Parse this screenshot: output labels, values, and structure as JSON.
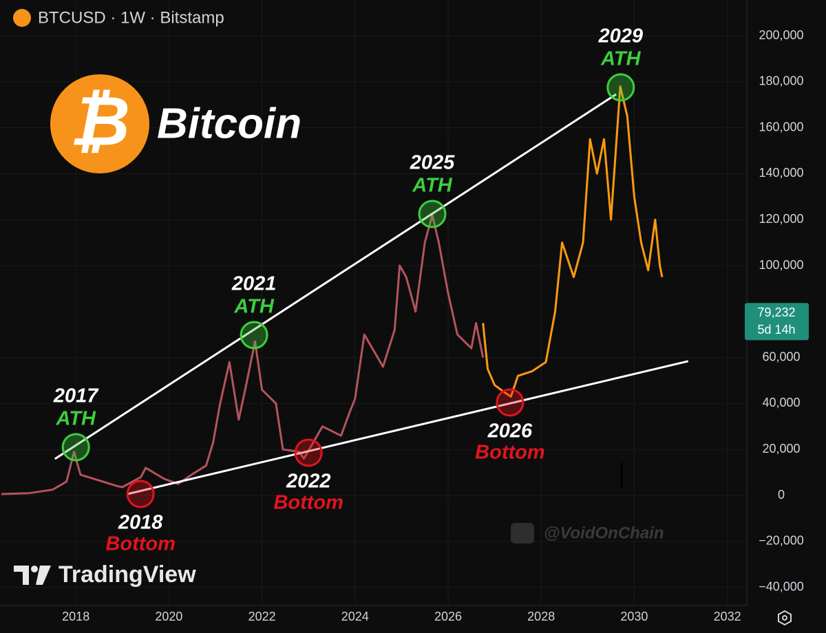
{
  "chart_data": {
    "type": "line",
    "header": "BTCUSD · 1W · Bitstamp",
    "logo": {
      "symbol": "₿",
      "text": "Bitcoin"
    },
    "watermarks": [
      "TradingView",
      "@VoidOnChain"
    ],
    "xlim": [
      2016.37,
      2032.42
    ],
    "xticks": [
      2018,
      2020,
      2022,
      2024,
      2026,
      2028,
      2030,
      2032
    ],
    "ylim": [
      -47900,
      215570
    ],
    "yticks": [
      {
        "value": -40000,
        "label": "−40,000"
      },
      {
        "value": -20000,
        "label": "−20,000"
      },
      0,
      {
        "value": 20000,
        "label": "20,000"
      },
      {
        "value": 40000,
        "label": "40,000"
      },
      {
        "value": 60000,
        "label": "60,000"
      },
      {
        "value": 100000,
        "label": "100,000"
      },
      {
        "value": 120000,
        "label": "120,000"
      },
      {
        "value": 140000,
        "label": "140,000"
      },
      {
        "value": 160000,
        "label": "160,000"
      },
      {
        "value": 180000,
        "label": "180,000"
      },
      {
        "value": 200000,
        "label": "200,000"
      }
    ],
    "grid": true,
    "series": [
      {
        "color": "#b4545c",
        "x": [
          2016.4,
          2017.0,
          2017.5,
          2017.8,
          2017.96,
          2018.1,
          2018.5,
          2018.9,
          2019.0,
          2019.4,
          2019.5,
          2019.9,
          2020.2,
          2020.5,
          2020.8,
          2020.95,
          2021.1,
          2021.3,
          2021.5,
          2021.65,
          2021.85,
          2022.0,
          2022.3,
          2022.45,
          2022.8,
          2022.9,
          2023.1,
          2023.3,
          2023.7,
          2023.9,
          2024.0,
          2024.2,
          2024.6,
          2024.85,
          2024.96,
          2025.1,
          2025.3,
          2025.5,
          2025.66,
          2025.8,
          2026.0,
          2026.2,
          2026.5,
          2026.6,
          2026.75
        ],
        "values": [
          600,
          1000,
          2500,
          6000,
          19000,
          9000,
          6500,
          4000,
          3600,
          8000,
          12000,
          7200,
          5000,
          9200,
          13000,
          23000,
          40000,
          58000,
          33000,
          47000,
          67000,
          46000,
          40000,
          20000,
          19000,
          16000,
          23000,
          30000,
          26000,
          37000,
          42000,
          70000,
          56000,
          72000,
          100000,
          95000,
          80000,
          110000,
          122000,
          110000,
          88000,
          70000,
          64000,
          75000,
          60000
        ]
      },
      {
        "color": "#ff9a0f",
        "x": [
          2026.75,
          2026.85,
          2027.0,
          2027.2,
          2027.35,
          2027.5,
          2027.8,
          2028.1,
          2028.3,
          2028.45,
          2028.7,
          2028.9,
          2029.05,
          2029.2,
          2029.35,
          2029.5,
          2029.7,
          2029.85,
          2030.0,
          2030.15,
          2030.3,
          2030.45,
          2030.55,
          2030.6
        ],
        "values": [
          75000,
          55000,
          48000,
          45000,
          43000,
          52000,
          54000,
          58000,
          80000,
          110000,
          95000,
          110000,
          155000,
          140000,
          155000,
          120000,
          178000,
          165000,
          130000,
          110000,
          98000,
          120000,
          100000,
          95000
        ]
      }
    ],
    "trendlines": [
      {
        "color": "#ffffff",
        "x": [
          2017.55,
          2029.61
        ],
        "y": [
          15870,
          174550
        ]
      },
      {
        "color": "#ffffff",
        "x": [
          2019.11,
          2031.16
        ],
        "y": [
          600,
          58400
        ]
      }
    ],
    "annotations": [
      {
        "year": "2017",
        "label": "ATH",
        "x": 2018.0,
        "y": 20960,
        "position": "above",
        "color": "#3ecf3e"
      },
      {
        "year": "2021",
        "label": "ATH",
        "x": 2021.83,
        "y": 69760,
        "position": "above",
        "color": "#3ecf3e"
      },
      {
        "year": "2025",
        "label": "ATH",
        "x": 2025.66,
        "y": 122450,
        "position": "above",
        "color": "#3ecf3e"
      },
      {
        "year": "2029",
        "label": "ATH",
        "x": 2029.71,
        "y": 177540,
        "position": "above",
        "color": "#3ecf3e"
      },
      {
        "year": "2018",
        "label": "Bottom",
        "x": 2019.39,
        "y": 600,
        "position": "below",
        "color": "#e2141e"
      },
      {
        "year": "2022",
        "label": "Bottom",
        "x": 2023.0,
        "y": 18560,
        "position": "below",
        "color": "#e2141e"
      },
      {
        "year": "2026",
        "label": "Bottom",
        "x": 2027.33,
        "y": 40420,
        "position": "below",
        "color": "#e2141e"
      }
    ],
    "price_tag": {
      "value": 79232,
      "label": "79,232",
      "countdown": "5d 14h",
      "color": "#1f8f7a"
    }
  }
}
